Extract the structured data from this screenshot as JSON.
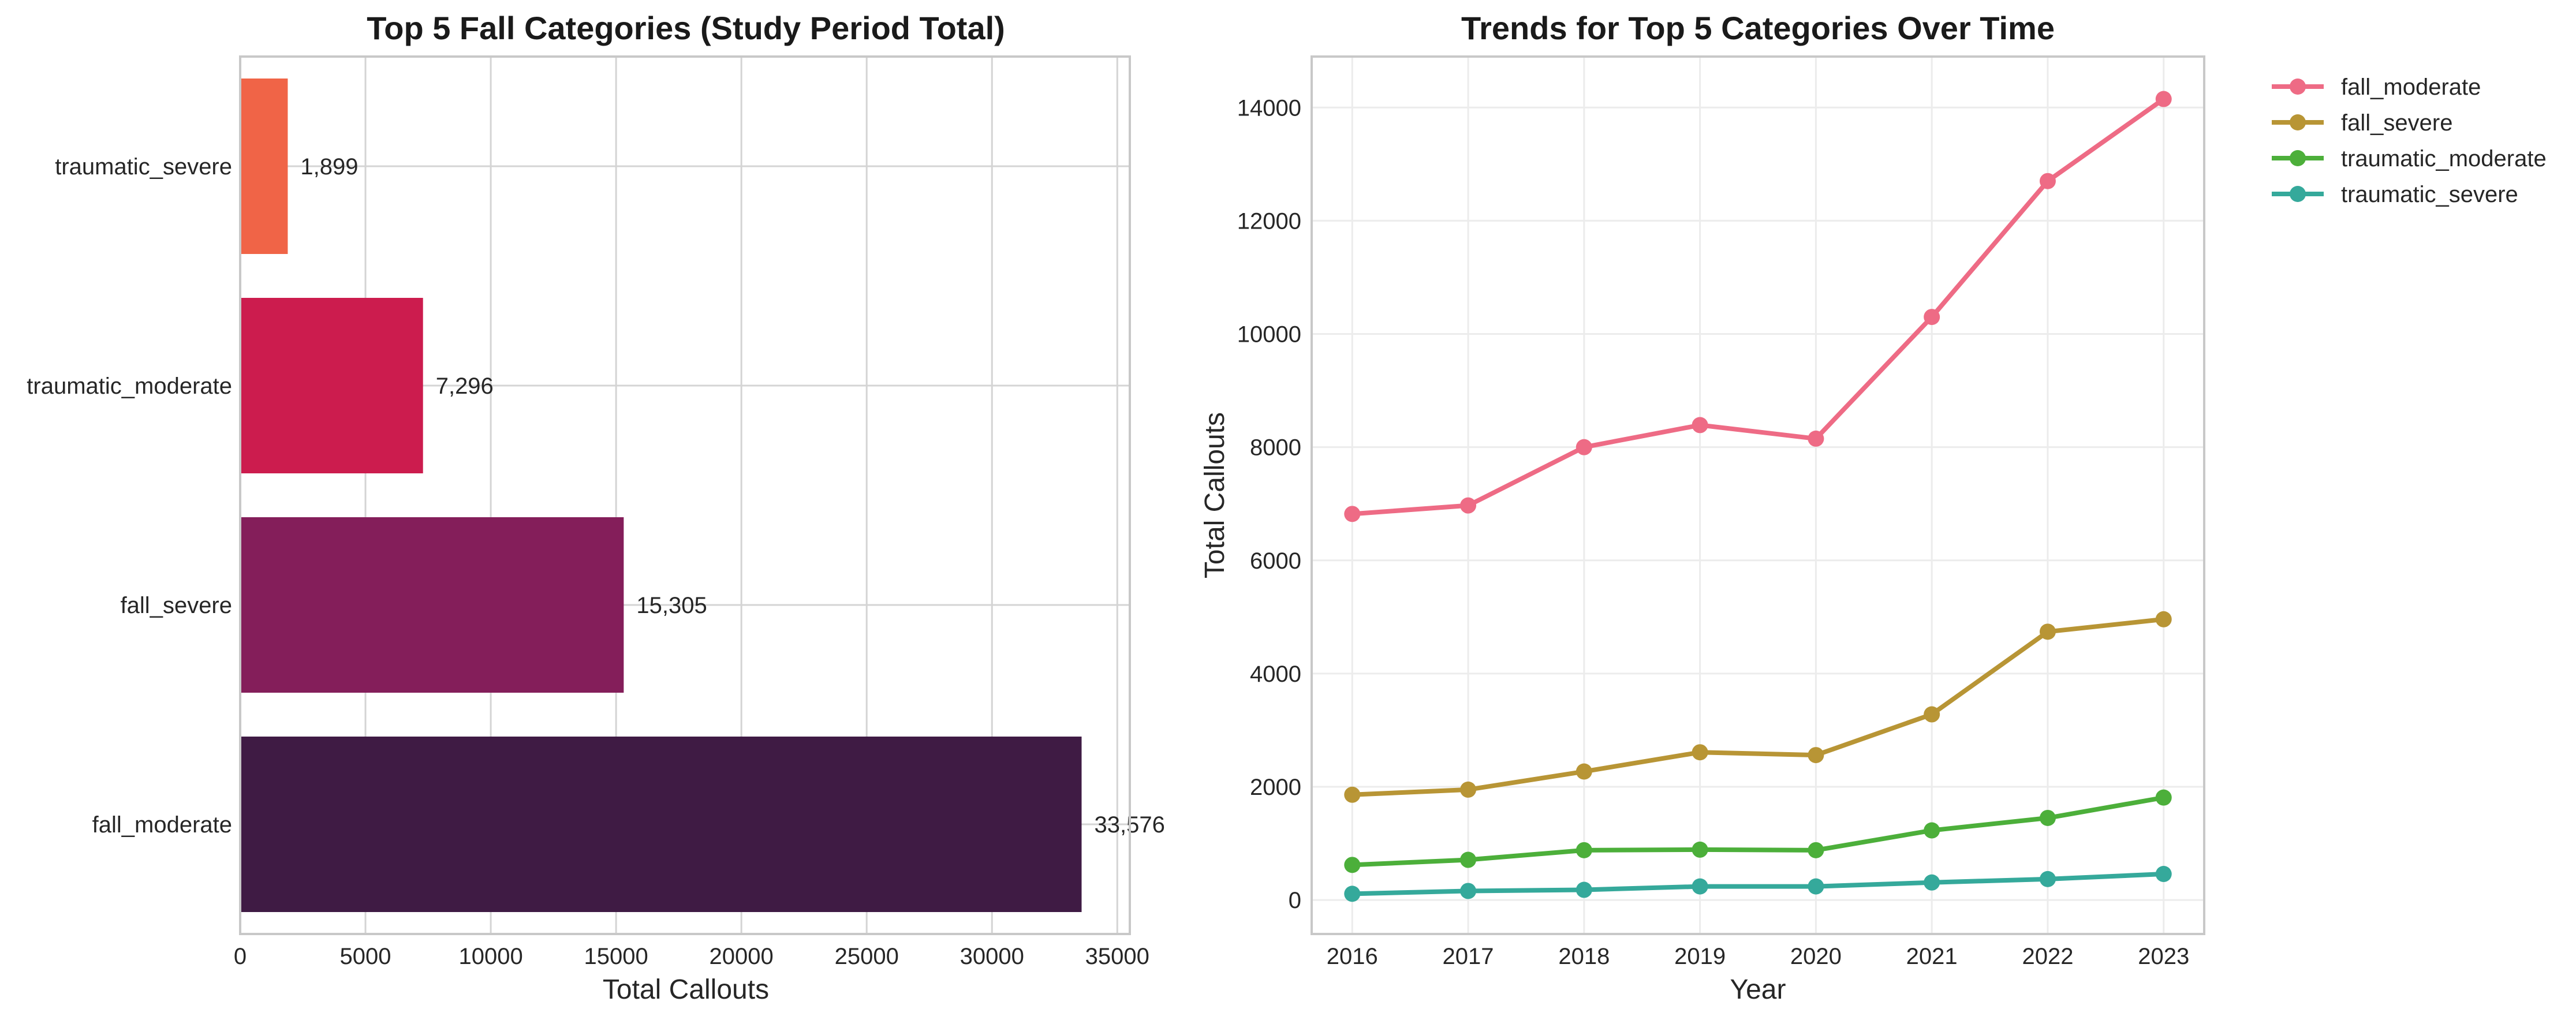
{
  "chart_data": [
    {
      "type": "bar",
      "orientation": "horizontal",
      "title": "Top 5 Fall Categories (Study Period Total)",
      "xlabel": "Total Callouts",
      "ylabel": "",
      "categories": [
        "traumatic_severe",
        "traumatic_moderate",
        "fall_severe",
        "fall_moderate"
      ],
      "values": [
        1899,
        7296,
        15305,
        33576
      ],
      "value_labels": [
        "1,899",
        "7,296",
        "15,305",
        "33,576"
      ],
      "colors": [
        "#f06447",
        "#cc1c4e",
        "#841e5a",
        "#3f1b44"
      ],
      "xlim": [
        0,
        35500
      ],
      "xticks": [
        0,
        5000,
        10000,
        15000,
        20000,
        25000,
        30000,
        35000
      ],
      "xtick_labels": [
        "0",
        "5000",
        "10000",
        "15000",
        "20000",
        "25000",
        "30000",
        "35000"
      ],
      "grid": true
    },
    {
      "type": "line",
      "title": "Trends for Top 5 Categories Over Time",
      "xlabel": "Year",
      "ylabel": "Total Callouts",
      "x": [
        2016,
        2017,
        2018,
        2019,
        2020,
        2021,
        2022,
        2023
      ],
      "xtick_labels": [
        "2016",
        "2017",
        "2018",
        "2019",
        "2020",
        "2021",
        "2022",
        "2023"
      ],
      "ylim": [
        -600,
        14900
      ],
      "yticks": [
        0,
        2000,
        4000,
        6000,
        8000,
        10000,
        12000,
        14000
      ],
      "ytick_labels": [
        "0",
        "2000",
        "4000",
        "6000",
        "8000",
        "10000",
        "12000",
        "14000"
      ],
      "grid": true,
      "legend_position": "outside-top-right",
      "series": [
        {
          "name": "fall_moderate",
          "color": "#ee6b85",
          "values": [
            6820,
            6970,
            8000,
            8390,
            8150,
            10300,
            12700,
            14150
          ]
        },
        {
          "name": "fall_severe",
          "color": "#b89535",
          "values": [
            1860,
            1950,
            2270,
            2610,
            2560,
            3280,
            4740,
            4960
          ]
        },
        {
          "name": "traumatic_moderate",
          "color": "#4caf3a",
          "values": [
            620,
            710,
            880,
            890,
            880,
            1230,
            1450,
            1810
          ]
        },
        {
          "name": "traumatic_severe",
          "color": "#35a99b",
          "values": [
            110,
            160,
            180,
            240,
            240,
            310,
            370,
            460
          ]
        }
      ]
    }
  ]
}
